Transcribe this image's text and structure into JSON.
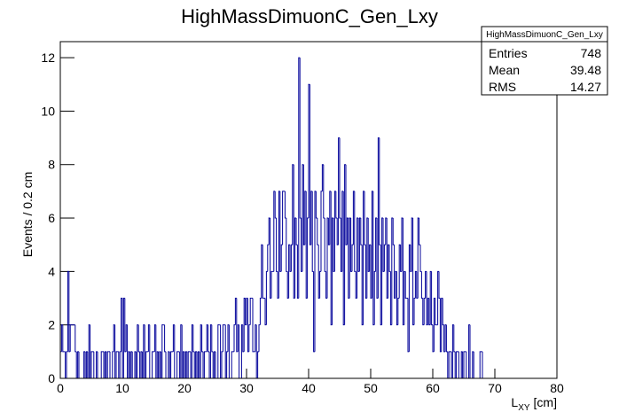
{
  "chart_data": {
    "type": "histogram",
    "title": "HighMassDimuonC_Gen_Lxy",
    "y_label": "Events / 0.2 cm",
    "x_label": {
      "main": "L",
      "sub": "XY",
      "unit": "[cm]"
    },
    "color": "#000099",
    "xlim": [
      0,
      80
    ],
    "ylim": [
      0,
      12.6
    ],
    "xticks": [
      0,
      10,
      20,
      30,
      40,
      50,
      60,
      70,
      80
    ],
    "yticks": [
      0,
      2,
      4,
      6,
      8,
      10,
      12
    ],
    "stats": {
      "name": "HighMassDimuonC_Gen_Lxy",
      "rows": [
        [
          "Entries",
          "748"
        ],
        [
          "Mean",
          "39.48"
        ],
        [
          "RMS",
          "14.27"
        ]
      ]
    },
    "bins": [
      0,
      0.2,
      0.4,
      0.6,
      0.8,
      1,
      1.2,
      1.4,
      1.6,
      1.8,
      2,
      2.2,
      2.4,
      2.6,
      2.8,
      3,
      3.2,
      3.4,
      3.6,
      3.8,
      4,
      4.2,
      4.4,
      4.6,
      4.8,
      5,
      5.2,
      5.4,
      5.6,
      5.8,
      6,
      6.2,
      6.4,
      6.6,
      6.8,
      7,
      7.2,
      7.4,
      7.6,
      7.8,
      8,
      8.2,
      8.4,
      8.6,
      8.8,
      9,
      9.2,
      9.4,
      9.6,
      9.8,
      10,
      10.2,
      10.4,
      10.6,
      10.8,
      11,
      11.2,
      11.4,
      11.6,
      11.8,
      12,
      12.2,
      12.4,
      12.6,
      12.8,
      13,
      13.2,
      13.4,
      13.6,
      13.8,
      14,
      14.2,
      14.4,
      14.6,
      14.8,
      15,
      15.2,
      15.4,
      15.6,
      15.8,
      16,
      16.2,
      16.4,
      16.6,
      16.8,
      17,
      17.2,
      17.4,
      17.6,
      17.8,
      18,
      18.2,
      18.4,
      18.6,
      18.8,
      19,
      19.2,
      19.4,
      19.6,
      19.8,
      20,
      20.2,
      20.4,
      20.6,
      20.8,
      21,
      21.2,
      21.4,
      21.6,
      21.8,
      22,
      22.2,
      22.4,
      22.6,
      22.8,
      23,
      23.2,
      23.4,
      23.6,
      23.8,
      24,
      24.2,
      24.4,
      24.6,
      24.8,
      25,
      25.2,
      25.4,
      25.6,
      25.8,
      26,
      26.2,
      26.4,
      26.6,
      26.8,
      27,
      27.2,
      27.4,
      27.6,
      27.8,
      28,
      28.2,
      28.4,
      28.6,
      28.8,
      29,
      29.2,
      29.4,
      29.6,
      29.8,
      30,
      30.2,
      30.4,
      30.6,
      30.8,
      31,
      31.2,
      31.4,
      31.6,
      31.8,
      32,
      32.2,
      32.4,
      32.6,
      32.8,
      33,
      33.2,
      33.4,
      33.6,
      33.8,
      34,
      34.2,
      34.4,
      34.6,
      34.8,
      35,
      35.2,
      35.4,
      35.6,
      35.8,
      36,
      36.2,
      36.4,
      36.6,
      36.8,
      37,
      37.2,
      37.4,
      37.6,
      37.8,
      38,
      38.2,
      38.4,
      38.6,
      38.8,
      39,
      39.2,
      39.4,
      39.6,
      39.8,
      40,
      40.2,
      40.4,
      40.6,
      40.8,
      41,
      41.2,
      41.4,
      41.6,
      41.8,
      42,
      42.2,
      42.4,
      42.6,
      42.8,
      43,
      43.2,
      43.4,
      43.6,
      43.8,
      44,
      44.2,
      44.4,
      44.6,
      44.8,
      45,
      45.2,
      45.4,
      45.6,
      45.8,
      46,
      46.2,
      46.4,
      46.6,
      46.8,
      47,
      47.2,
      47.4,
      47.6,
      47.8,
      48,
      48.2,
      48.4,
      48.6,
      48.8,
      49,
      49.2,
      49.4,
      49.6,
      49.8,
      50,
      50.2,
      50.4,
      50.6,
      50.8,
      51,
      51.2,
      51.4,
      51.6,
      51.8,
      52,
      52.2,
      52.4,
      52.6,
      52.8,
      53,
      53.2,
      53.4,
      53.6,
      53.8,
      54,
      54.2,
      54.4,
      54.6,
      54.8,
      55,
      55.2,
      55.4,
      55.6,
      55.8,
      56,
      56.2,
      56.4,
      56.6,
      56.8,
      57,
      57.2,
      57.4,
      57.6,
      57.8,
      58,
      58.2,
      58.4,
      58.6,
      58.8,
      59,
      59.2,
      59.4,
      59.6,
      59.8,
      60,
      60.2,
      60.4,
      60.6,
      60.8,
      61,
      61.2,
      61.4,
      61.6,
      61.8,
      62,
      62.2,
      62.4,
      62.6,
      62.8,
      63,
      63.2,
      63.4,
      63.6,
      63.8,
      64,
      64.2,
      64.4,
      64.6,
      64.8,
      65,
      65.2,
      65.4,
      65.6,
      65.8,
      66,
      66.2,
      66.4,
      66.6,
      66.8,
      67,
      67.2,
      67.4,
      67.6,
      67.8,
      68,
      68.2,
      68.4,
      68.6,
      68.8,
      69,
      69.2,
      69.4,
      69.6,
      69.8,
      70,
      70.2,
      70.4,
      70.6,
      70.8,
      71,
      71.2,
      71.4,
      71.6,
      71.8,
      72,
      72.2,
      72.4,
      72.6,
      72.8,
      73,
      73.2,
      73.4,
      73.6,
      73.8,
      74,
      74.2,
      74.4,
      74.6,
      74.8,
      75,
      75.2,
      75.4,
      75.6,
      75.8,
      76,
      76.2,
      76.4,
      76.6,
      76.8,
      77,
      77.2,
      77.4,
      77.6,
      77.8,
      78,
      78.2,
      78.4,
      78.6,
      78.8,
      79,
      79.2,
      79.4,
      79.6,
      79.8,
      80
    ],
    "values": [
      1,
      2,
      1,
      1,
      0,
      1,
      4,
      1,
      2,
      2,
      2,
      2,
      1,
      0,
      1,
      0,
      0,
      0,
      0,
      1,
      0,
      1,
      0,
      2,
      0,
      1,
      1,
      0,
      0,
      1,
      0,
      0,
      0,
      1,
      1,
      0,
      1,
      0,
      1,
      1,
      0,
      0,
      1,
      2,
      0,
      1,
      1,
      0,
      1,
      3,
      0,
      3,
      1,
      2,
      0,
      1,
      0,
      1,
      0,
      0,
      1,
      0,
      2,
      1,
      0,
      1,
      0,
      2,
      0,
      1,
      1,
      2,
      0,
      0,
      1,
      1,
      2,
      0,
      1,
      0,
      1,
      0,
      2,
      2,
      1,
      0,
      0,
      1,
      0,
      1,
      1,
      2,
      0,
      0,
      1,
      1,
      0,
      2,
      0,
      1,
      0,
      1,
      0,
      1,
      1,
      0,
      2,
      1,
      0,
      1,
      0,
      1,
      0,
      2,
      1,
      0,
      1,
      1,
      2,
      1,
      0,
      2,
      1,
      0,
      1,
      0,
      0,
      2,
      2,
      0,
      1,
      2,
      2,
      0,
      1,
      2,
      0,
      0,
      1,
      1,
      2,
      3,
      1,
      2,
      0,
      0,
      2,
      1,
      3,
      2,
      3,
      1,
      2,
      3,
      3,
      1,
      1,
      2,
      0,
      1,
      2,
      3,
      5,
      3,
      3,
      2,
      4,
      5,
      6,
      3,
      4,
      4,
      7,
      6,
      4,
      3,
      7,
      4,
      5,
      7,
      7,
      6,
      4,
      3,
      5,
      4,
      5,
      8,
      3,
      6,
      5,
      3,
      12,
      6,
      4,
      8,
      5,
      7,
      3,
      6,
      11,
      5,
      7,
      4,
      1,
      7,
      6,
      5,
      3,
      4,
      7,
      8,
      6,
      4,
      3,
      6,
      5,
      7,
      2,
      6,
      4,
      7,
      6,
      5,
      9,
      6,
      4,
      7,
      2,
      8,
      5,
      6,
      3,
      6,
      4,
      5,
      7,
      4,
      3,
      6,
      4,
      6,
      5,
      2,
      7,
      5,
      3,
      6,
      4,
      5,
      3,
      7,
      2,
      4,
      6,
      3,
      9,
      5,
      2,
      6,
      4,
      5,
      6,
      3,
      5,
      4,
      2,
      6,
      5,
      3,
      4,
      2,
      3,
      5,
      4,
      6,
      2,
      4,
      3,
      3,
      1,
      5,
      4,
      6,
      2,
      3,
      4,
      3,
      6,
      5,
      4,
      3,
      2,
      3,
      4,
      2,
      3,
      2,
      4,
      2,
      1,
      3,
      2,
      2,
      4,
      3,
      1,
      3,
      2,
      1,
      2,
      1,
      0,
      1,
      1,
      0,
      2,
      1,
      0,
      1,
      1,
      0,
      0,
      1,
      0,
      1,
      1,
      0,
      0,
      2,
      0,
      0,
      1,
      0,
      0,
      0,
      0,
      0,
      1,
      1,
      0,
      0,
      0,
      0,
      0,
      0,
      0,
      0,
      0,
      0,
      0,
      0,
      0,
      0,
      0,
      0,
      0,
      0,
      0,
      0,
      0,
      0,
      0,
      0,
      0,
      0,
      0,
      0,
      0,
      0,
      0,
      0,
      0,
      0,
      0,
      0,
      0,
      0,
      0,
      0,
      0,
      0,
      0,
      0,
      0,
      0,
      0,
      0,
      0,
      0,
      0,
      0,
      0,
      0,
      0,
      0,
      0,
      0,
      0,
      0
    ]
  }
}
